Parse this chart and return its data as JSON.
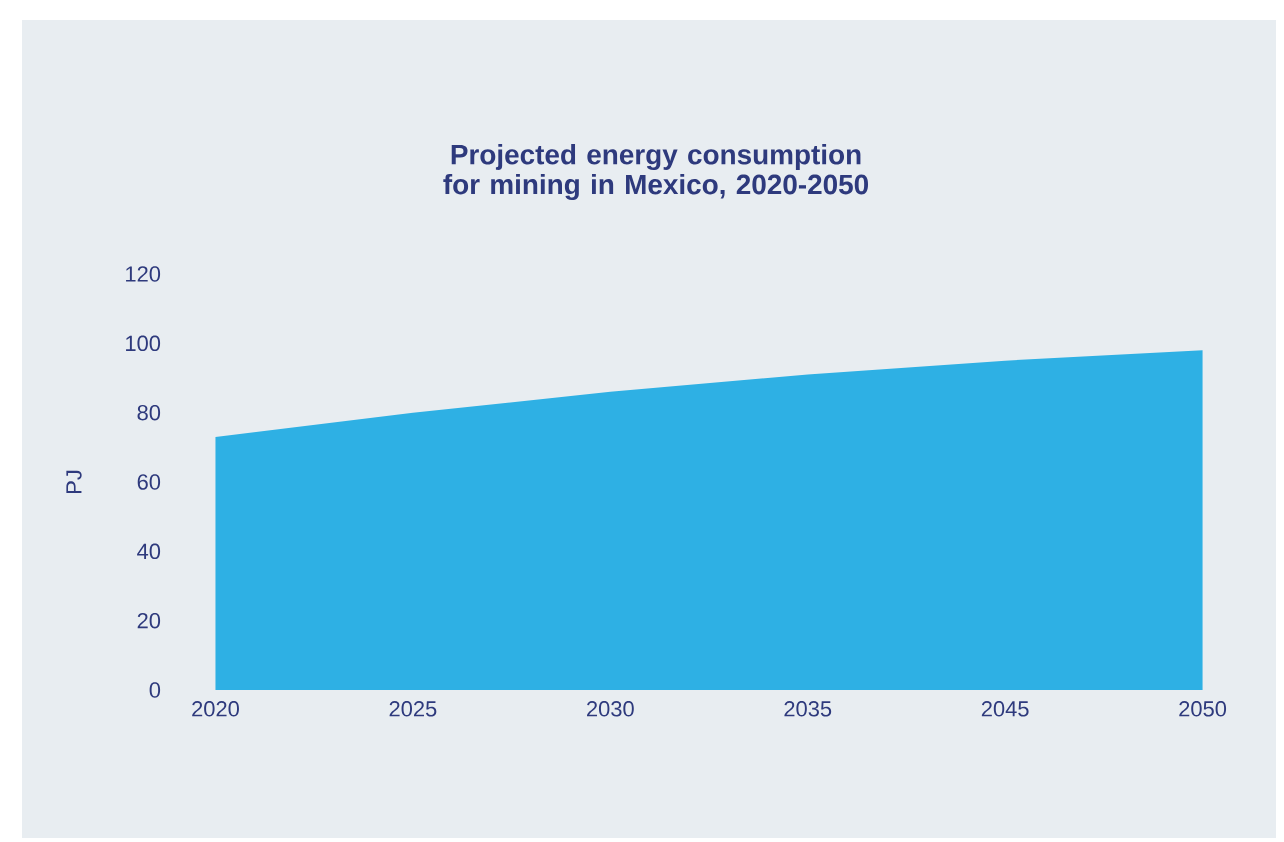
{
  "chart_data": {
    "type": "area",
    "title": "Projected energy consumption for mining in Mexico, 2020-2050",
    "ylabel": "PJ",
    "categories": [
      "2020",
      "2025",
      "2030",
      "2035",
      "2045",
      "2050"
    ],
    "series": [
      {
        "color": "#2eb0e4",
        "values": [
          73,
          80,
          86,
          91,
          95,
          98
        ]
      }
    ],
    "ylim": [
      0,
      120
    ],
    "yticks": [
      0,
      20,
      40,
      60,
      80,
      100,
      120
    ],
    "grid": false
  }
}
